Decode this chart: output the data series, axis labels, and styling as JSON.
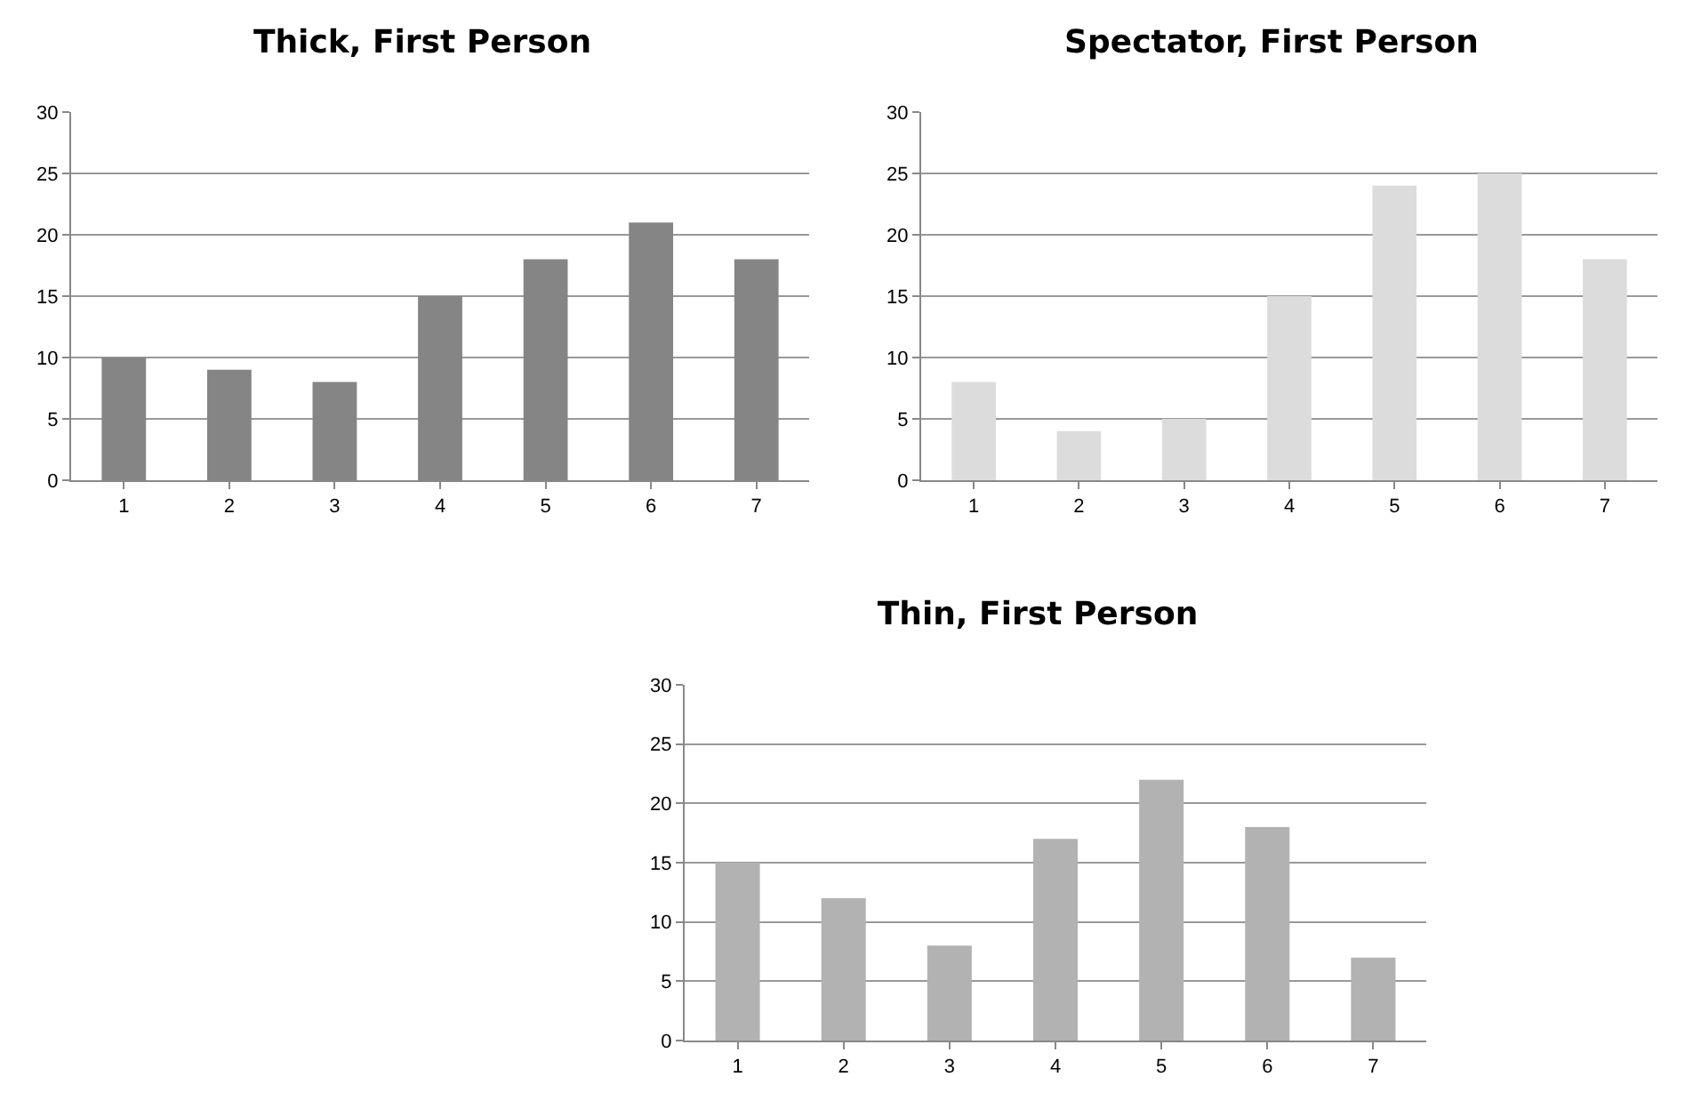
{
  "chart_data": [
    {
      "type": "bar",
      "title": "Thick, First Person",
      "categories": [
        "1",
        "2",
        "3",
        "4",
        "5",
        "6",
        "7"
      ],
      "values": [
        10,
        9,
        8,
        15,
        18,
        21,
        18
      ],
      "color": "#858585",
      "ylim": [
        0,
        30
      ],
      "yticks": [
        0,
        5,
        10,
        15,
        20,
        25,
        30
      ],
      "grid": "y",
      "legend": false
    },
    {
      "type": "bar",
      "title": "Spectator, First Person",
      "categories": [
        "1",
        "2",
        "3",
        "4",
        "5",
        "6",
        "7"
      ],
      "values": [
        8,
        4,
        5,
        15,
        24,
        25,
        18
      ],
      "color": "#dcdcdc",
      "ylim": [
        0,
        30
      ],
      "yticks": [
        0,
        5,
        10,
        15,
        20,
        25,
        30
      ],
      "grid": "y",
      "legend": false
    },
    {
      "type": "bar",
      "title": "Thin, First Person",
      "categories": [
        "1",
        "2",
        "3",
        "4",
        "5",
        "6",
        "7"
      ],
      "values": [
        15,
        12,
        8,
        17,
        22,
        18,
        7
      ],
      "color": "#b2b2b2",
      "ylim": [
        0,
        30
      ],
      "yticks": [
        0,
        5,
        10,
        15,
        20,
        25,
        30
      ],
      "grid": "y",
      "legend": false
    }
  ]
}
